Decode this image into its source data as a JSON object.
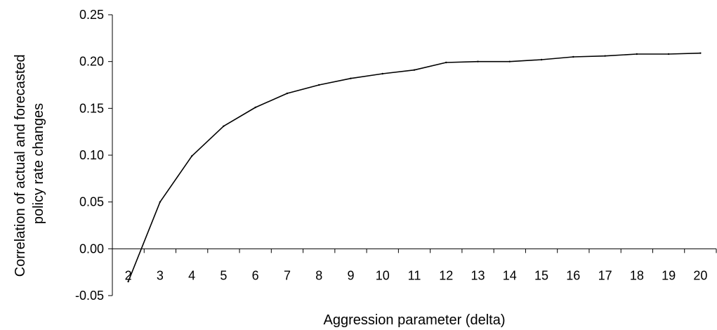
{
  "chart_data": {
    "type": "line",
    "title": "",
    "xlabel": "Aggression parameter (delta)",
    "ylabel_lines": [
      "Correlation of actual and forecasted",
      "policy rate changes"
    ],
    "categories": [
      "2",
      "3",
      "4",
      "5",
      "6",
      "7",
      "8",
      "9",
      "10",
      "11",
      "12",
      "13",
      "14",
      "15",
      "16",
      "17",
      "18",
      "19",
      "20"
    ],
    "series": [
      {
        "values": [
          -0.035,
          0.05,
          0.099,
          0.131,
          0.151,
          0.166,
          0.175,
          0.182,
          0.187,
          0.191,
          0.199,
          0.2,
          0.2,
          0.202,
          0.205,
          0.206,
          0.208,
          0.208,
          0.209
        ]
      }
    ],
    "ylim": [
      -0.05,
      0.25
    ],
    "yticks": [
      -0.05,
      0.0,
      0.05,
      0.1,
      0.15,
      0.2,
      0.25
    ],
    "ytick_labels": [
      "-0.05",
      "0.00",
      "0.05",
      "0.10",
      "0.15",
      "0.20",
      "0.25"
    ],
    "grid": false,
    "legend": "none",
    "line_color": "#000000"
  }
}
